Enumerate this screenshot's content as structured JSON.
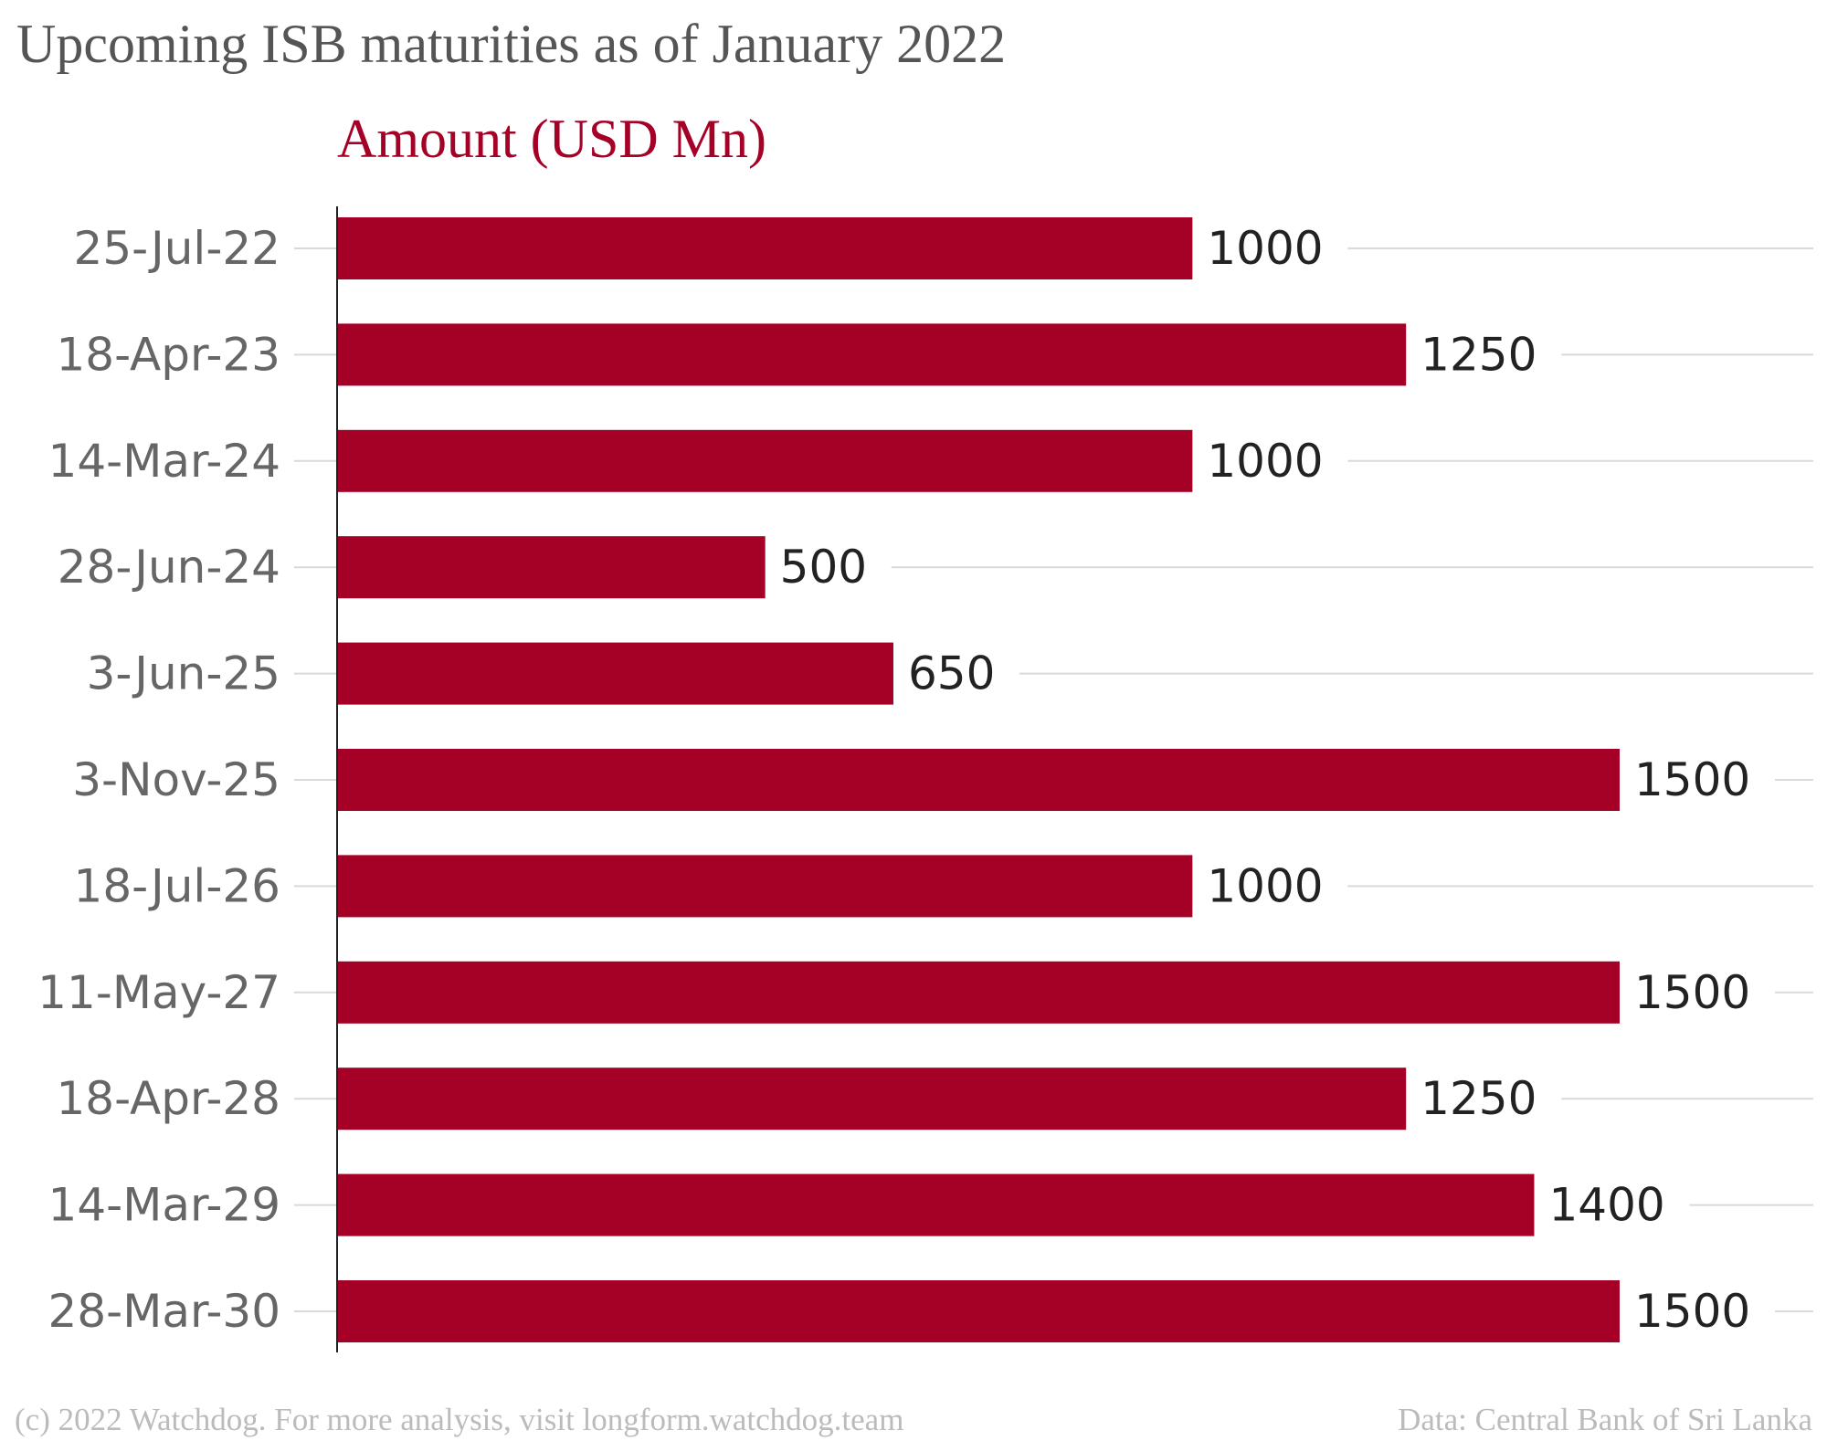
{
  "title": "Upcoming ISB maturities as of January 2022",
  "footer": {
    "credit": "(c) 2022 Watchdog. For more analysis, visit longform.watchdog.team",
    "source": "Data: Central Bank of Sri Lanka"
  },
  "colors": {
    "bar": "#a50026",
    "title": "#555555",
    "subtitle": "#a50026",
    "grid": "#d9d9d9",
    "footer": "#bbbbbb"
  },
  "chart_data": {
    "type": "bar",
    "orientation": "horizontal",
    "title": "Upcoming ISB maturities as of January 2022",
    "xlabel": "Amount (USD Mn)",
    "ylabel": "",
    "categories": [
      "25-Jul-22",
      "18-Apr-23",
      "14-Mar-24",
      "28-Jun-24",
      "3-Jun-25",
      "3-Nov-25",
      "18-Jul-26",
      "11-May-27",
      "18-Apr-28",
      "14-Mar-29",
      "28-Mar-30"
    ],
    "series": [
      {
        "values": [
          1000,
          1250,
          1000,
          500,
          650,
          1500,
          1000,
          1500,
          1250,
          1400,
          1500
        ]
      }
    ],
    "xlim": [
      0,
      1500
    ],
    "data_labels": true,
    "grid": true,
    "legend": "none"
  }
}
